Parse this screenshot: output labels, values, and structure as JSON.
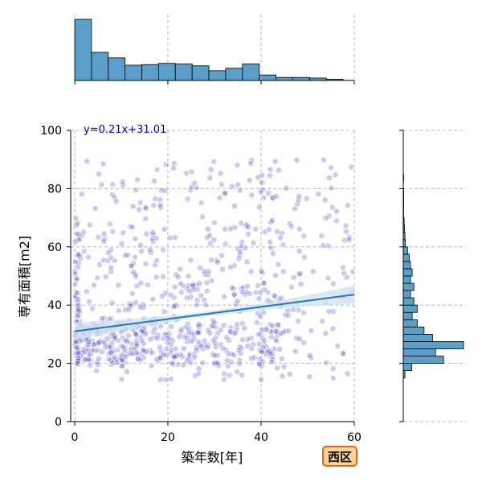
{
  "badge": {
    "label": "西区",
    "border_color": "#e8631b",
    "fill_color": "#ffd39a"
  },
  "chart_data": {
    "type": "scatter",
    "xlabel": "築年数[年]",
    "ylabel": "専有面積[m2]",
    "xlim": [
      0,
      60
    ],
    "ylim": [
      0,
      100
    ],
    "x_ticks": [
      0,
      20,
      40,
      60
    ],
    "y_ticks": [
      0,
      20,
      40,
      60,
      80,
      100
    ],
    "grid": true,
    "annotation": "y=0.21x+31.01",
    "regression": {
      "slope": 0.21,
      "intercept": 31.01,
      "x_range": [
        0,
        60
      ],
      "color": "#1f77b4",
      "band_color": "#cfe0ee"
    },
    "point_color": "#4848c8",
    "histogram_color": "#5a9ec9",
    "x_histogram": {
      "bin_edges": [
        0,
        3.6,
        7.2,
        10.8,
        14.4,
        18,
        21.6,
        25.2,
        28.8,
        32.4,
        36,
        39.6,
        43.2,
        46.8,
        50.4,
        54,
        57.6
      ],
      "counts": [
        100,
        46,
        37,
        25,
        26,
        28,
        27,
        24,
        16,
        20,
        27,
        9,
        5,
        5,
        4,
        2
      ]
    },
    "y_histogram": {
      "bin_edges": [
        15,
        17.5,
        20,
        22.5,
        25,
        27.5,
        30,
        32.5,
        35,
        37.5,
        40,
        42.5,
        45,
        47.5,
        50,
        52.5,
        55,
        57.5,
        60,
        62.5,
        65,
        67.5,
        70,
        72.5,
        75,
        77.5,
        80,
        82.5,
        85
      ],
      "counts": [
        4,
        20,
        95,
        76,
        142,
        69,
        49,
        33,
        21,
        33,
        25,
        17,
        25,
        17,
        21,
        17,
        14,
        10,
        5,
        4,
        3,
        2,
        1,
        1,
        1,
        1,
        0,
        1
      ]
    },
    "point_clusters": [
      {
        "x": [
          0,
          60
        ],
        "y": [
          14,
          90
        ],
        "n": 330,
        "shape": "uniform"
      },
      {
        "x": [
          0,
          45
        ],
        "y": [
          19,
          34
        ],
        "n": 230,
        "shape": "uniform"
      },
      {
        "x": [
          0,
          16
        ],
        "y": [
          21,
          34
        ],
        "n": 90,
        "shape": "uniform"
      },
      {
        "x": [
          0,
          1
        ],
        "y": [
          20,
          70
        ],
        "n": 45,
        "shape": "uniform"
      },
      {
        "x": [
          0,
          45
        ],
        "y": [
          30,
          68
        ],
        "n": 120,
        "shape": "uniform"
      }
    ]
  }
}
